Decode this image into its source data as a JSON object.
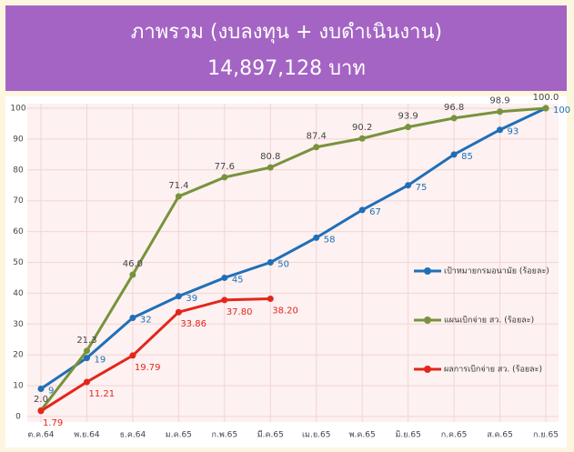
{
  "chart_data": {
    "type": "line",
    "title": "ภาพรวม (งบลงทุน + งบดำเนินงาน)",
    "subtitle": "14,897,128 บาท",
    "categories": [
      "ต.ค.64",
      "พ.ย.64",
      "ธ.ค.64",
      "ม.ค.65",
      "ก.พ.65",
      "มี.ค.65",
      "เม.ย.65",
      "พ.ค.65",
      "มิ.ย.65",
      "ก.ค.65",
      "ส.ค.65",
      "ก.ย.65"
    ],
    "series": [
      {
        "name": "เป้าหมายกรมอนามัย (ร้อยละ)",
        "color": "#1f6fb8",
        "values": [
          9,
          19,
          32,
          39,
          45,
          50,
          58,
          67,
          75,
          85,
          93,
          100
        ]
      },
      {
        "name": "แผนเบิกจ่าย สว. (ร้อยละ)",
        "color": "#77933c",
        "values": [
          2.0,
          21.3,
          46.0,
          71.4,
          77.6,
          80.8,
          87.4,
          90.2,
          93.9,
          96.8,
          98.9,
          100.0
        ],
        "value_labels": [
          "2.0",
          "21.3",
          "46.0",
          "71.4",
          "77.6",
          "80.8",
          "87.4",
          "90.2",
          "93.9",
          "96.8",
          "98.9",
          "100.0"
        ]
      },
      {
        "name": "ผลการเบิกจ่าย สว. (ร้อยละ)",
        "color": "#e3261b",
        "values": [
          1.79,
          11.21,
          19.79,
          33.86,
          37.8,
          38.2,
          null,
          null,
          null,
          null,
          null,
          null
        ],
        "value_labels": [
          "1.79",
          "11.21",
          "19.79",
          "33.86",
          "37.80",
          "38.20",
          null,
          null,
          null,
          null,
          null,
          null
        ]
      }
    ],
    "ylim": [
      0,
      100
    ],
    "yticks": [
      0,
      10,
      20,
      30,
      40,
      50,
      60,
      70,
      80,
      90,
      100
    ],
    "grid": true,
    "legend": "right"
  }
}
